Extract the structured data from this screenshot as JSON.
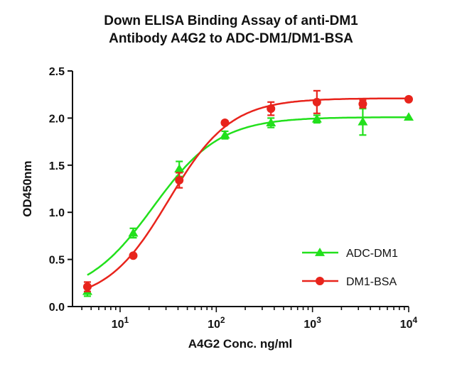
{
  "chart_data": {
    "type": "scatter",
    "title_lines": [
      "Down ELISA Binding Assay of anti-DM1",
      "Antibody A4G2 to ADC-DM1/DM1-BSA"
    ],
    "xlabel": "A4G2 Conc. ng/ml",
    "ylabel": "OD450nm",
    "x_scale": "log",
    "xlim": [
      3.2,
      10000
    ],
    "ylim": [
      0,
      2.5
    ],
    "y_ticks": [
      "0.0",
      "0.5",
      "1.0",
      "1.5",
      "2.0",
      "2.5"
    ],
    "x_tick_labels": [
      {
        "value": 10,
        "base": "10",
        "exp": "1"
      },
      {
        "value": 100,
        "base": "10",
        "exp": "2"
      },
      {
        "value": 1000,
        "base": "10",
        "exp": "3"
      },
      {
        "value": 10000,
        "base": "10",
        "exp": "4"
      }
    ],
    "legend_position": "bottom-right",
    "series": [
      {
        "name": "ADC-DM1",
        "color": "#22e01c",
        "marker": "triangle",
        "x": [
          4.57,
          13.7,
          41.2,
          123,
          370,
          1111,
          3333,
          10000
        ],
        "y": [
          0.16,
          0.78,
          1.46,
          1.82,
          1.95,
          1.99,
          1.96,
          2.01
        ],
        "err": [
          0.05,
          0.05,
          0.08,
          0.04,
          0.05,
          0.04,
          0.14,
          0.0
        ],
        "fit": {
          "bottom": 0.1,
          "top": 2.01,
          "ec50": 22,
          "hill": 1.25
        }
      },
      {
        "name": "DM1-BSA",
        "color": "#e8241c",
        "marker": "circle",
        "x": [
          4.57,
          13.7,
          41.2,
          123,
          370,
          1111,
          3333,
          10000
        ],
        "y": [
          0.21,
          0.54,
          1.34,
          1.95,
          2.1,
          2.17,
          2.15,
          2.2
        ],
        "err": [
          0.05,
          0.0,
          0.08,
          0.0,
          0.07,
          0.12,
          0.04,
          0.0
        ],
        "fit": {
          "bottom": 0.05,
          "top": 2.21,
          "ec50": 32,
          "hill": 1.35
        }
      }
    ]
  }
}
